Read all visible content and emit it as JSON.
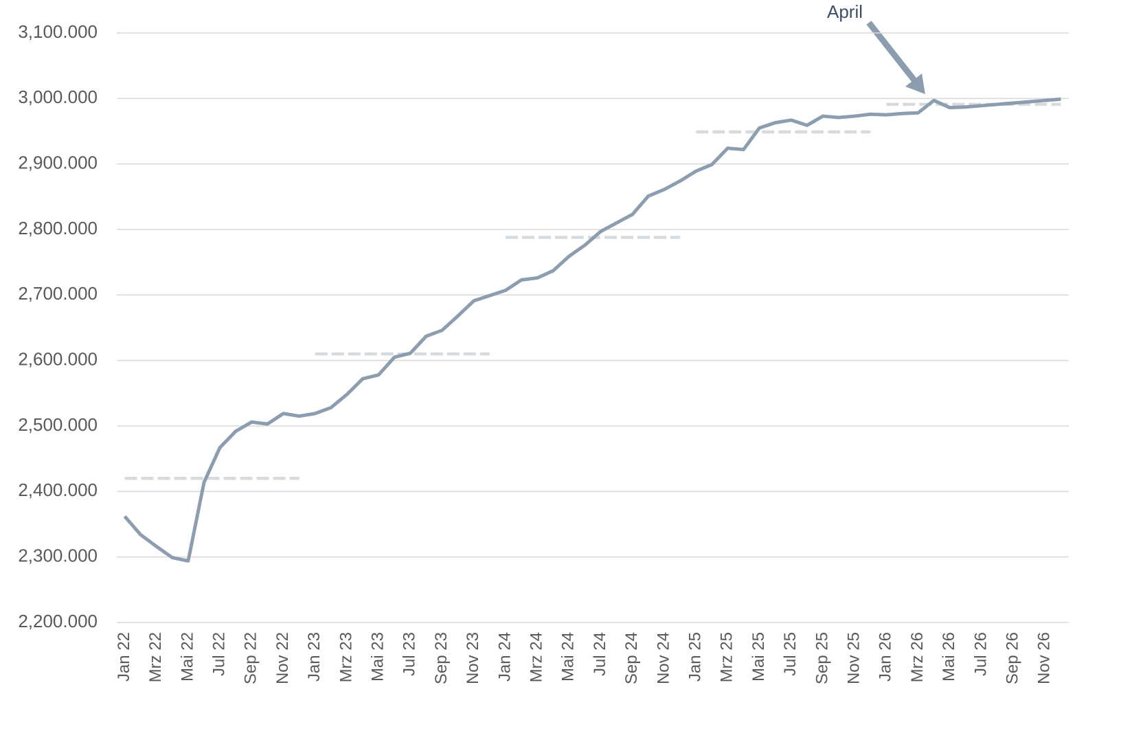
{
  "chart_data": {
    "type": "line",
    "categories": [
      "Jan 22",
      null,
      "Mrz 22",
      null,
      "Mai 22",
      null,
      "Jul 22",
      null,
      "Sep 22",
      null,
      "Nov 22",
      null,
      "Jan 23",
      null,
      "Mrz 23",
      null,
      "Mai 23",
      null,
      "Jul 23",
      null,
      "Sep 23",
      null,
      "Nov 23",
      null,
      "Jan 24",
      null,
      "Mrz 24",
      null,
      "Mai 24",
      null,
      "Jul 24",
      null,
      "Sep 24",
      null,
      "Nov 24",
      null,
      "Jan 25",
      null,
      "Mrz 25",
      null,
      "Mai 25",
      null,
      "Jul 25",
      null,
      "Sep 25",
      null,
      "Nov 25",
      null,
      "Jan 26",
      null,
      "Mrz 26",
      null,
      "Mai 26",
      null,
      "Jul 26",
      null,
      "Sep 26",
      null,
      "Nov 26",
      null
    ],
    "series": [
      {
        "color": "#8d9db0",
        "values": [
          2362000,
          2334000,
          2316000,
          2299000,
          2294000,
          2414000,
          2467000,
          2492000,
          2506000,
          2503000,
          2519000,
          2515000,
          2519000,
          2528000,
          2548000,
          2572000,
          2578000,
          2605000,
          2611000,
          2637000,
          2646000,
          2668000,
          2691000,
          2699000,
          2707000,
          2723000,
          2726000,
          2737000,
          2759000,
          2776000,
          2797000,
          2810000,
          2823000,
          2851000,
          2861000,
          2874000,
          2889000,
          2899000,
          2924000,
          2922000,
          2955000,
          2963000,
          2967000,
          2959000,
          2973000,
          2971000,
          2973000,
          2976000,
          2975000,
          2977000,
          2978000,
          2997000,
          2986000,
          2987000,
          2989000,
          2991000,
          2993000,
          2995000,
          2997000,
          2999000
        ]
      },
      {
        "color": "#d6dbe0",
        "dashed": true,
        "values": [
          2420000,
          2420000,
          2420000,
          2420000,
          2420000,
          2420000,
          2420000,
          2420000,
          2420000,
          2420000,
          2420000,
          2420000,
          2610000,
          2610000,
          2610000,
          2610000,
          2610000,
          2610000,
          2610000,
          2610000,
          2610000,
          2610000,
          2610000,
          2610000,
          2788000,
          2788000,
          2788000,
          2788000,
          2788000,
          2788000,
          2788000,
          2788000,
          2788000,
          2788000,
          2788000,
          2788000,
          2949000,
          2949000,
          2949000,
          2949000,
          2949000,
          2949000,
          2949000,
          2949000,
          2949000,
          2949000,
          2949000,
          2949000,
          2991000,
          2991000,
          2991000,
          2991000,
          2991000,
          2991000,
          2991000,
          2991000,
          2991000,
          2991000,
          2991000,
          2991000
        ]
      }
    ],
    "ylim": [
      2200000,
      3100000
    ],
    "yticks": [
      {
        "value": 2200000,
        "label": "2,200.000"
      },
      {
        "value": 2300000,
        "label": "2,300.000"
      },
      {
        "value": 2400000,
        "label": "2,400.000"
      },
      {
        "value": 2500000,
        "label": "2,500.000"
      },
      {
        "value": 2600000,
        "label": "2,600.000"
      },
      {
        "value": 2700000,
        "label": "2,700.000"
      },
      {
        "value": 2800000,
        "label": "2,800.000"
      },
      {
        "value": 2900000,
        "label": "2,900.000"
      },
      {
        "value": 3000000,
        "label": "3,000.000"
      },
      {
        "value": 3100000,
        "label": "3,100.000"
      }
    ],
    "grid": true,
    "annotations": [
      {
        "text": "April"
      }
    ]
  }
}
